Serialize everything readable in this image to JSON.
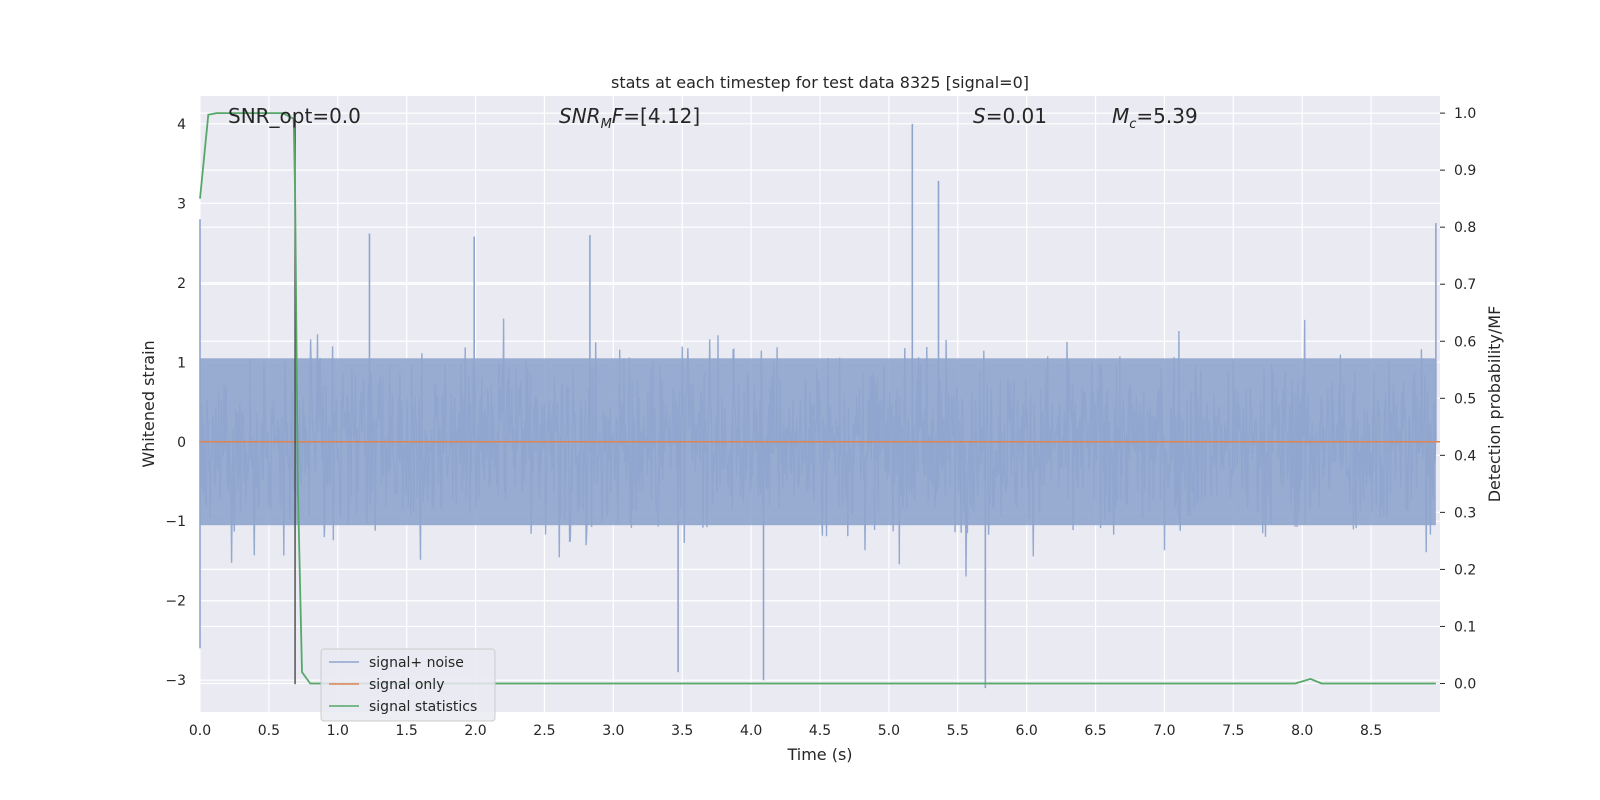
{
  "chart_data": {
    "type": "line",
    "title": "stats at each timestep for test data 8325 [signal=0]",
    "xlabel": "Time (s)",
    "ylabel_left": "Whitened strain",
    "ylabel_right": "Detection probability/MF",
    "xlim": [
      0.0,
      9.0
    ],
    "ylim_left": [
      -3.4,
      4.35
    ],
    "ylim_right": [
      -0.05,
      1.03
    ],
    "grid": true,
    "legend_position": "lower-left",
    "x_ticks": [
      "0.0",
      "0.5",
      "1.0",
      "1.5",
      "2.0",
      "2.5",
      "3.0",
      "3.5",
      "4.0",
      "4.5",
      "5.0",
      "5.5",
      "6.0",
      "6.5",
      "7.0",
      "7.5",
      "8.0",
      "8.5"
    ],
    "y_ticks_left": [
      "−3",
      "−2",
      "−1",
      "0",
      "1",
      "2",
      "3",
      "4"
    ],
    "y_ticks_right": [
      "0.0",
      "0.1",
      "0.2",
      "0.3",
      "0.4",
      "0.5",
      "0.6",
      "0.7",
      "0.8",
      "0.9",
      "1.0"
    ],
    "annotations": {
      "snr_opt": "SNR_opt=0.0",
      "snr_mf": "=[4.12]",
      "s_value": "=0.01",
      "mc_value": "=5.39"
    },
    "series": [
      {
        "name": "signal+ noise",
        "color": "#8fa5cd",
        "axis": "left",
        "description_range": [
          -3.1,
          4.0
        ],
        "peaks": [
          {
            "x": 0.0,
            "y": 2.8
          },
          {
            "x": 0.0,
            "y": -2.6
          },
          {
            "x": 1.23,
            "y": 2.62
          },
          {
            "x": 1.99,
            "y": 2.58
          },
          {
            "x": 2.83,
            "y": 2.6
          },
          {
            "x": 3.47,
            "y": -2.9
          },
          {
            "x": 4.09,
            "y": -3.0
          },
          {
            "x": 5.17,
            "y": 4.0
          },
          {
            "x": 5.36,
            "y": 3.28
          },
          {
            "x": 5.7,
            "y": -3.1
          },
          {
            "x": 8.97,
            "y": 2.75
          }
        ]
      },
      {
        "name": "signal only",
        "color": "#dd8452",
        "axis": "left",
        "x": [
          0.0,
          9.0
        ],
        "y": [
          0.0,
          0.0
        ]
      },
      {
        "name": "signal statistics",
        "color": "#55a868",
        "axis": "right",
        "x": [
          0.0,
          0.06,
          0.12,
          0.2,
          0.3,
          0.4,
          0.5,
          0.6,
          0.68,
          0.69,
          0.71,
          0.74,
          0.8,
          1.0,
          2.0,
          3.0,
          4.0,
          5.0,
          6.0,
          7.0,
          7.95,
          8.06,
          8.14,
          8.5,
          8.97
        ],
        "y": [
          0.85,
          0.997,
          1.0,
          1.0,
          1.0,
          1.0,
          1.0,
          1.0,
          0.99,
          0.86,
          0.35,
          0.02,
          0.0,
          0.0,
          0.0,
          0.0,
          0.0,
          0.0,
          0.0,
          0.0,
          0.0,
          0.008,
          0.0,
          0.0,
          0.0
        ]
      }
    ],
    "vertical_marker": {
      "x": 0.69,
      "color": "#4a4a4a"
    }
  }
}
